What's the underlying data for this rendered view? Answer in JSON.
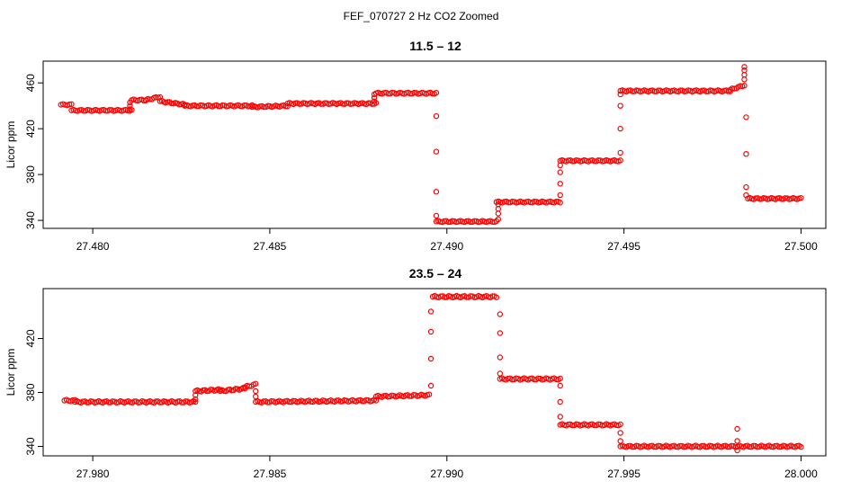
{
  "figure_title": "FEF_070727  2 Hz CO2 Zoomed",
  "style": {
    "point_color": "#ff0000",
    "background": "#ffffff",
    "axis_color": "#000000"
  },
  "chart_data": [
    {
      "type": "scatter",
      "title": "11.5 – 12",
      "xlabel": "",
      "ylabel": "Licor ppm",
      "xlim": [
        27.4786,
        27.5007
      ],
      "ylim": [
        333,
        479
      ],
      "xticks": [
        27.48,
        27.485,
        27.49,
        27.495,
        27.5
      ],
      "xtick_labels": [
        "27.480",
        "27.485",
        "27.490",
        "27.495",
        "27.500"
      ],
      "yticks": [
        340,
        380,
        420,
        460
      ],
      "ytick_labels": [
        "340",
        "380",
        "420",
        "460"
      ],
      "grid": false,
      "marker": "open-circle",
      "segments": [
        {
          "x": [
            27.4791,
            27.4794
          ],
          "y": [
            441,
            441
          ]
        },
        {
          "x": [
            27.4794,
            27.4811
          ],
          "y": [
            436,
            436
          ]
        },
        {
          "x": [
            27.4811,
            27.4815
          ],
          "y": [
            445,
            445
          ]
        },
        {
          "x": [
            27.4815,
            27.4819
          ],
          "y": [
            445,
            448
          ]
        },
        {
          "x": [
            27.4819,
            27.4826
          ],
          "y": [
            444,
            441
          ]
        },
        {
          "x": [
            27.4826,
            27.4845
          ],
          "y": [
            440,
            440
          ]
        },
        {
          "x": [
            27.4845,
            27.4855
          ],
          "y": [
            439,
            440
          ]
        },
        {
          "x": [
            27.4855,
            27.488
          ],
          "y": [
            442,
            442
          ]
        },
        {
          "x": [
            27.488,
            27.4897
          ],
          "y": [
            451,
            451
          ]
        },
        {
          "x": [
            27.4897,
            27.4914
          ],
          "y": [
            339,
            339
          ]
        },
        {
          "x": [
            27.4914,
            27.4932
          ],
          "y": [
            356,
            356
          ]
        },
        {
          "x": [
            27.4932,
            27.4949
          ],
          "y": [
            392,
            392
          ]
        },
        {
          "x": [
            27.4949,
            27.498
          ],
          "y": [
            453,
            453
          ]
        },
        {
          "x": [
            27.498,
            27.4984
          ],
          "y": [
            454,
            458
          ]
        },
        {
          "x": [
            27.4985,
            27.5
          ],
          "y": [
            359,
            359
          ]
        }
      ],
      "transitions": [
        {
          "x": 27.48105,
          "y": [
            437,
            440,
            443
          ]
        },
        {
          "x": 27.48795,
          "y": [
            444,
            447,
            450
          ]
        },
        {
          "x": 27.4897,
          "y": [
            431,
            400,
            365,
            344
          ]
        },
        {
          "x": 27.49145,
          "y": [
            341,
            346,
            350,
            354
          ]
        },
        {
          "x": 27.4932,
          "y": [
            362,
            372,
            382,
            388
          ]
        },
        {
          "x": 27.4949,
          "y": [
            399,
            420,
            440,
            450
          ]
        },
        {
          "x": 27.4984,
          "y": [
            463,
            467,
            471,
            474
          ]
        },
        {
          "x": 27.49845,
          "y": [
            430,
            398,
            369,
            362
          ]
        }
      ]
    },
    {
      "type": "scatter",
      "title": "23.5 – 24",
      "xlabel": "",
      "ylabel": "Licor ppm",
      "xlim": [
        27.9786,
        28.0007
      ],
      "ylim": [
        333,
        457
      ],
      "xticks": [
        27.98,
        27.985,
        27.99,
        27.995,
        28.0
      ],
      "xtick_labels": [
        "27.980",
        "27.985",
        "27.990",
        "27.995",
        "28.000"
      ],
      "yticks": [
        340,
        380,
        420
      ],
      "ytick_labels": [
        "340",
        "380",
        "420"
      ],
      "grid": false,
      "marker": "open-circle",
      "segments": [
        {
          "x": [
            27.9792,
            27.9795
          ],
          "y": [
            374,
            374
          ]
        },
        {
          "x": [
            27.9795,
            27.9829
          ],
          "y": [
            373,
            373
          ]
        },
        {
          "x": [
            27.9829,
            27.9836
          ],
          "y": [
            381,
            382
          ]
        },
        {
          "x": [
            27.9836,
            27.9843
          ],
          "y": [
            381,
            383
          ]
        },
        {
          "x": [
            27.9843,
            27.9846
          ],
          "y": [
            384,
            386
          ]
        },
        {
          "x": [
            27.9846,
            27.988
          ],
          "y": [
            373,
            374
          ]
        },
        {
          "x": [
            27.988,
            27.9895
          ],
          "y": [
            377,
            378
          ]
        },
        {
          "x": [
            27.9896,
            27.9914
          ],
          "y": [
            451,
            451
          ]
        },
        {
          "x": [
            27.9915,
            27.9932
          ],
          "y": [
            390,
            390
          ]
        },
        {
          "x": [
            27.9932,
            27.9949
          ],
          "y": [
            356,
            356
          ]
        },
        {
          "x": [
            27.9949,
            28.0
          ],
          "y": [
            340,
            340
          ]
        }
      ],
      "transitions": [
        {
          "x": 27.9829,
          "y": [
            375,
            378
          ]
        },
        {
          "x": 27.9846,
          "y": [
            381,
            377
          ]
        },
        {
          "x": 27.98955,
          "y": [
            385,
            405,
            425,
            440
          ]
        },
        {
          "x": 27.9915,
          "y": [
            438,
            424,
            406,
            394
          ]
        },
        {
          "x": 27.9932,
          "y": [
            385,
            373,
            362
          ]
        },
        {
          "x": 27.9949,
          "y": [
            350,
            344
          ]
        },
        {
          "x": 27.9982,
          "y": [
            353,
            344,
            337
          ]
        }
      ]
    }
  ]
}
